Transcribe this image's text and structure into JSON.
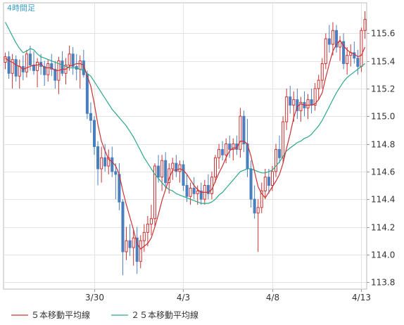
{
  "chart_data": {
    "type": "candlestick",
    "period_label": "4時間足",
    "y_axis": {
      "side": "right",
      "ylim": [
        113.75,
        115.82
      ],
      "ticks": [
        115.6,
        115.4,
        115.2,
        115.0,
        114.8,
        114.6,
        114.4,
        114.2,
        114.0,
        113.8
      ],
      "tick_labels": [
        "115.6",
        "115.4",
        "115.2",
        "115.0",
        "114.8",
        "114.6",
        "114.4",
        "114.2",
        "114.0",
        "113.8"
      ]
    },
    "x_axis": {
      "date_ticks": [
        {
          "label": "3/30",
          "index": 25
        },
        {
          "label": "4/3",
          "index": 50
        },
        {
          "label": "4/8",
          "index": 75
        },
        {
          "label": "4/13",
          "index": 100
        }
      ]
    },
    "grid": true,
    "legend": [
      {
        "name": "５本移動平均線",
        "color": "#cc3333"
      },
      {
        "name": "２５本移動平均線",
        "color": "#2aa88a"
      }
    ],
    "colors": {
      "up": "#cc3333",
      "down": "#4a7fbf",
      "ma5": "#cc3333",
      "ma25": "#2aa88a"
    },
    "ohlc": [
      [
        115.39,
        115.46,
        115.34,
        115.43
      ],
      [
        115.43,
        115.47,
        115.27,
        115.31
      ],
      [
        115.31,
        115.45,
        115.2,
        115.41
      ],
      [
        115.41,
        115.44,
        115.25,
        115.29
      ],
      [
        115.29,
        115.41,
        115.2,
        115.36
      ],
      [
        115.36,
        115.44,
        115.26,
        115.32
      ],
      [
        115.32,
        115.48,
        115.28,
        115.45
      ],
      [
        115.45,
        115.51,
        115.33,
        115.37
      ],
      [
        115.37,
        115.47,
        115.3,
        115.33
      ],
      [
        115.33,
        115.42,
        115.21,
        115.39
      ],
      [
        115.39,
        115.45,
        115.3,
        115.36
      ],
      [
        115.36,
        115.4,
        115.22,
        115.3
      ],
      [
        115.3,
        115.41,
        115.25,
        115.38
      ],
      [
        115.38,
        115.45,
        115.29,
        115.34
      ],
      [
        115.34,
        115.4,
        115.2,
        115.26
      ],
      [
        115.26,
        115.43,
        115.16,
        115.4
      ],
      [
        115.4,
        115.47,
        115.29,
        115.31
      ],
      [
        115.31,
        115.42,
        115.23,
        115.37
      ],
      [
        115.37,
        115.51,
        115.33,
        115.45
      ],
      [
        115.45,
        115.5,
        115.3,
        115.36
      ],
      [
        115.36,
        115.45,
        115.26,
        115.34
      ],
      [
        115.34,
        115.44,
        115.2,
        115.4
      ],
      [
        115.4,
        115.48,
        115.28,
        115.3
      ],
      [
        115.3,
        115.33,
        114.98,
        115.02
      ],
      [
        115.02,
        115.1,
        114.88,
        114.97
      ],
      [
        114.97,
        115.0,
        114.72,
        114.78
      ],
      [
        114.78,
        114.82,
        114.5,
        114.62
      ],
      [
        114.62,
        114.78,
        114.52,
        114.7
      ],
      [
        114.7,
        114.8,
        114.6,
        114.64
      ],
      [
        114.64,
        114.76,
        114.58,
        114.7
      ],
      [
        114.7,
        114.78,
        114.56,
        114.6
      ],
      [
        114.6,
        114.66,
        114.4,
        114.58
      ],
      [
        114.58,
        114.66,
        114.32,
        114.38
      ],
      [
        114.38,
        114.4,
        113.85,
        114.02
      ],
      [
        114.02,
        114.2,
        113.96,
        114.1
      ],
      [
        114.1,
        114.22,
        113.99,
        114.05
      ],
      [
        114.05,
        114.18,
        113.92,
        114.12
      ],
      [
        114.12,
        114.2,
        113.86,
        113.95
      ],
      [
        113.95,
        114.14,
        113.9,
        114.1
      ],
      [
        114.1,
        114.22,
        114.02,
        114.16
      ],
      [
        114.16,
        114.28,
        114.06,
        114.22
      ],
      [
        114.22,
        114.36,
        114.14,
        114.26
      ],
      [
        114.26,
        114.66,
        114.2,
        114.64
      ],
      [
        114.64,
        114.72,
        114.52,
        114.56
      ],
      [
        114.56,
        114.72,
        114.46,
        114.68
      ],
      [
        114.68,
        114.74,
        114.48,
        114.52
      ],
      [
        114.52,
        114.66,
        114.44,
        114.62
      ],
      [
        114.62,
        114.7,
        114.54,
        114.66
      ],
      [
        114.66,
        114.72,
        114.56,
        114.6
      ],
      [
        114.6,
        114.68,
        114.52,
        114.65
      ],
      [
        114.65,
        114.68,
        114.46,
        114.5
      ],
      [
        114.5,
        114.58,
        114.38,
        114.42
      ],
      [
        114.42,
        114.52,
        114.36,
        114.48
      ],
      [
        114.48,
        114.56,
        114.4,
        114.44
      ],
      [
        114.44,
        114.5,
        114.36,
        114.46
      ],
      [
        114.46,
        114.52,
        114.36,
        114.4
      ],
      [
        114.4,
        114.54,
        114.36,
        114.5
      ],
      [
        114.5,
        114.58,
        114.4,
        114.44
      ],
      [
        114.44,
        114.6,
        114.4,
        114.56
      ],
      [
        114.56,
        114.72,
        114.52,
        114.7
      ],
      [
        114.7,
        114.8,
        114.62,
        114.76
      ],
      [
        114.76,
        114.82,
        114.68,
        114.72
      ],
      [
        114.72,
        114.84,
        114.66,
        114.8
      ],
      [
        114.8,
        114.86,
        114.7,
        114.76
      ],
      [
        114.76,
        114.84,
        114.68,
        114.8
      ],
      [
        114.8,
        114.86,
        114.72,
        114.76
      ],
      [
        114.76,
        115.06,
        114.7,
        115.0
      ],
      [
        115.0,
        115.04,
        114.74,
        114.8
      ],
      [
        114.8,
        114.98,
        114.56,
        114.62
      ],
      [
        114.62,
        114.68,
        114.34,
        114.4
      ],
      [
        114.4,
        114.5,
        114.26,
        114.3
      ],
      [
        114.3,
        114.4,
        114.02,
        114.34
      ],
      [
        114.34,
        114.52,
        114.3,
        114.46
      ],
      [
        114.46,
        114.62,
        114.4,
        114.56
      ],
      [
        114.56,
        114.62,
        114.44,
        114.5
      ],
      [
        114.5,
        114.64,
        114.46,
        114.6
      ],
      [
        114.6,
        114.8,
        114.56,
        114.76
      ],
      [
        114.76,
        114.86,
        114.66,
        114.7
      ],
      [
        114.7,
        115.0,
        114.66,
        114.96
      ],
      [
        114.96,
        115.2,
        114.9,
        115.14
      ],
      [
        115.14,
        115.22,
        115.02,
        115.08
      ],
      [
        115.08,
        115.18,
        114.96,
        115.12
      ],
      [
        115.12,
        115.2,
        114.98,
        115.04
      ],
      [
        115.04,
        115.14,
        114.96,
        115.1
      ],
      [
        115.1,
        115.18,
        115.0,
        115.06
      ],
      [
        115.06,
        115.16,
        114.98,
        115.12
      ],
      [
        115.12,
        115.2,
        115.02,
        115.08
      ],
      [
        115.08,
        115.24,
        115.04,
        115.2
      ],
      [
        115.2,
        115.3,
        115.12,
        115.26
      ],
      [
        115.26,
        115.42,
        115.2,
        115.38
      ],
      [
        115.38,
        115.6,
        115.34,
        115.56
      ],
      [
        115.56,
        115.66,
        115.46,
        115.52
      ],
      [
        115.52,
        115.68,
        115.44,
        115.62
      ],
      [
        115.62,
        115.66,
        115.46,
        115.5
      ],
      [
        115.5,
        115.58,
        115.4,
        115.54
      ],
      [
        115.54,
        115.6,
        115.34,
        115.38
      ],
      [
        115.38,
        115.5,
        115.3,
        115.44
      ],
      [
        115.44,
        115.52,
        115.36,
        115.46
      ],
      [
        115.46,
        115.54,
        115.38,
        115.42
      ],
      [
        115.42,
        115.48,
        115.3,
        115.36
      ],
      [
        115.36,
        115.64,
        115.32,
        115.62
      ],
      [
        115.62,
        115.76,
        115.56,
        115.7
      ]
    ],
    "ma5": [
      115.42,
      115.4,
      115.39,
      115.37,
      115.36,
      115.34,
      115.35,
      115.36,
      115.37,
      115.37,
      115.38,
      115.35,
      115.35,
      115.35,
      115.33,
      115.33,
      115.34,
      115.34,
      115.36,
      115.37,
      115.38,
      115.38,
      115.37,
      115.29,
      115.22,
      115.09,
      114.94,
      114.82,
      114.75,
      114.69,
      114.67,
      114.64,
      114.58,
      114.46,
      114.36,
      114.27,
      114.18,
      114.08,
      114.04,
      114.06,
      114.08,
      114.12,
      114.2,
      114.29,
      114.39,
      114.47,
      114.55,
      114.61,
      114.61,
      114.62,
      114.61,
      114.58,
      114.54,
      114.5,
      114.47,
      114.45,
      114.45,
      114.45,
      114.47,
      114.53,
      114.59,
      114.64,
      114.7,
      114.75,
      114.77,
      114.77,
      114.82,
      114.82,
      114.8,
      114.71,
      114.6,
      114.49,
      114.44,
      114.41,
      114.45,
      114.49,
      114.53,
      114.58,
      114.66,
      114.77,
      114.87,
      114.99,
      115.07,
      115.09,
      115.08,
      115.08,
      115.08,
      115.09,
      115.12,
      115.17,
      115.28,
      115.38,
      115.47,
      115.52,
      115.55,
      115.51,
      115.48,
      115.46,
      115.45,
      115.43,
      115.44,
      115.5
    ],
    "ma25": [
      115.68,
      115.63,
      115.58,
      115.53,
      115.49,
      115.46,
      115.47,
      115.49,
      115.48,
      115.45,
      115.43,
      115.42,
      115.41,
      115.4,
      115.39,
      115.38,
      115.37,
      115.36,
      115.35,
      115.35,
      115.35,
      115.34,
      115.33,
      115.31,
      115.29,
      115.25,
      115.21,
      115.17,
      115.13,
      115.09,
      115.05,
      115.02,
      114.99,
      114.96,
      114.93,
      114.89,
      114.85,
      114.8,
      114.75,
      114.7,
      114.66,
      114.62,
      114.58,
      114.55,
      114.52,
      114.49,
      114.47,
      114.46,
      114.44,
      114.43,
      114.42,
      114.41,
      114.4,
      114.39,
      114.38,
      114.37,
      114.37,
      114.37,
      114.38,
      114.4,
      114.43,
      114.45,
      114.48,
      114.51,
      114.54,
      114.57,
      114.6,
      114.61,
      114.62,
      114.62,
      114.61,
      114.6,
      114.59,
      114.59,
      114.6,
      114.61,
      114.64,
      114.67,
      114.71,
      114.75,
      114.77,
      114.79,
      114.81,
      114.82,
      114.84,
      114.85,
      114.87,
      114.9,
      114.93,
      114.97,
      115.02,
      115.07,
      115.12,
      115.17,
      115.21,
      115.25,
      115.28,
      115.3,
      115.32,
      115.34,
      115.36,
      115.38
    ]
  }
}
